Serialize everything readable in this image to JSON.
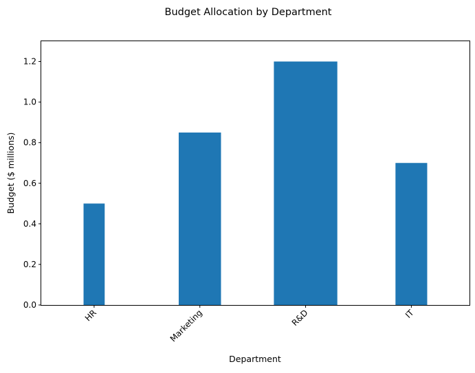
{
  "chart_data": {
    "type": "bar",
    "title": "Budget Allocation by Department",
    "xlabel": "Department",
    "ylabel": "Budget ($ millions)",
    "categories": [
      "HR",
      "Marketing",
      "R&D",
      "IT"
    ],
    "values": [
      0.5,
      0.85,
      1.2,
      0.7
    ],
    "relative_widths": [
      0.2,
      0.4,
      0.6,
      0.3
    ],
    "ylim": [
      0,
      1.3
    ],
    "yticks": [
      "0.0",
      "0.2",
      "0.4",
      "0.6",
      "0.8",
      "1.0",
      "1.2"
    ],
    "bar_color": "#1f77b4",
    "grid": false,
    "legend": "none"
  }
}
